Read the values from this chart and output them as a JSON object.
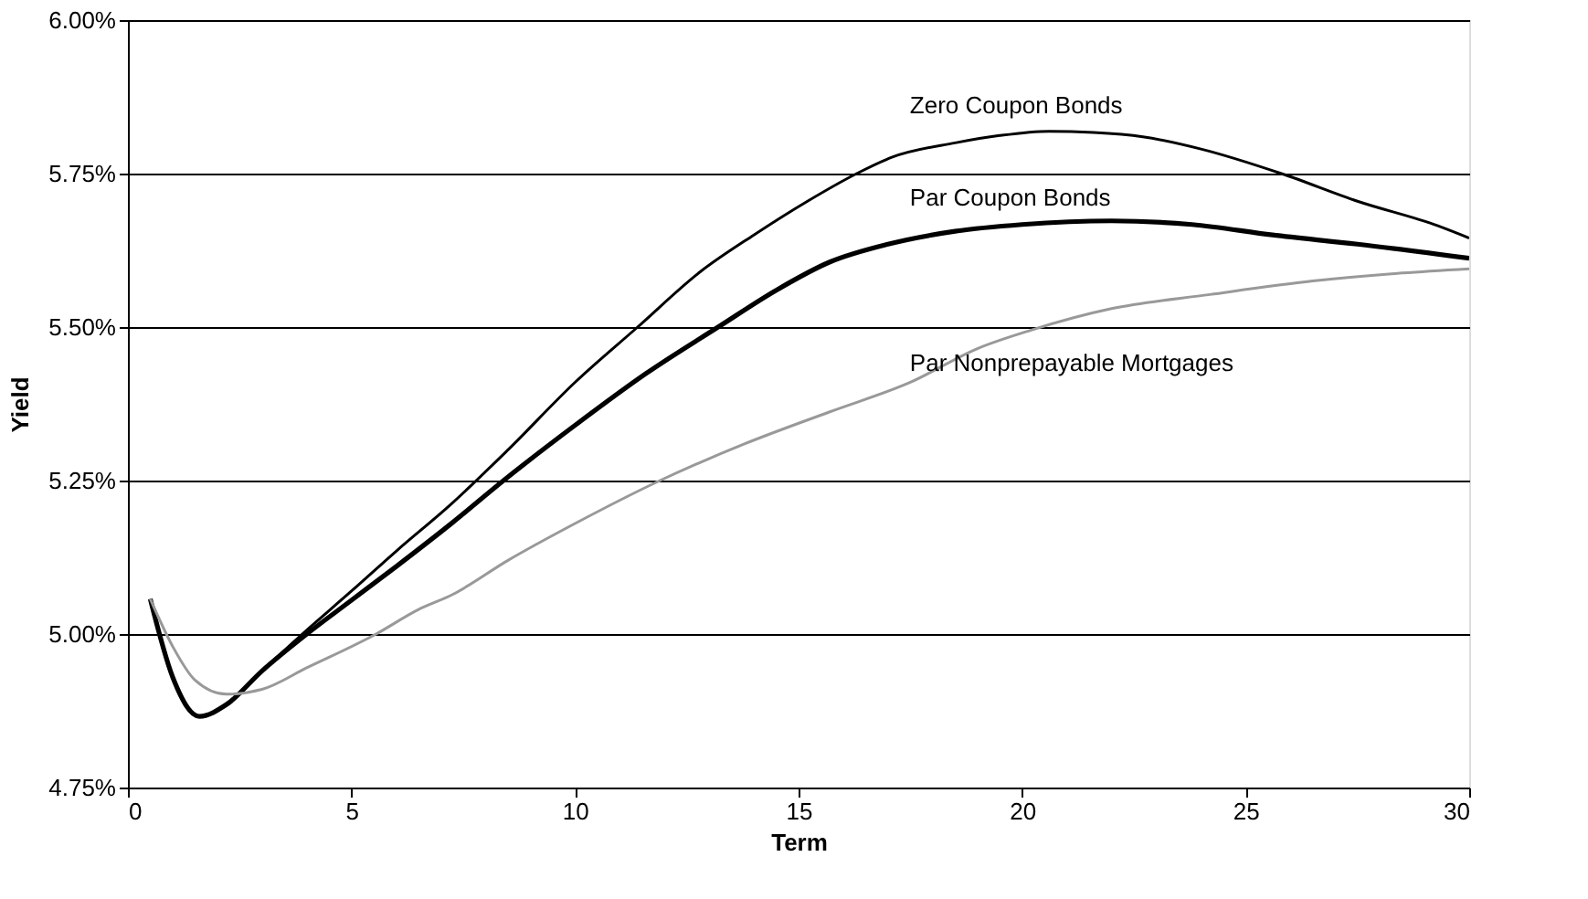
{
  "chart_data": {
    "type": "line",
    "xlabel": "Term",
    "ylabel": "Yield",
    "xlim": [
      0,
      30
    ],
    "xticks": [
      0,
      5,
      10,
      15,
      20,
      25,
      30
    ],
    "ylim": [
      4.75,
      6.0
    ],
    "yticks": [
      {
        "value": 4.75,
        "label": "4.75%"
      },
      {
        "value": 5.0,
        "label": "5.00%"
      },
      {
        "value": 5.25,
        "label": "5.25%"
      },
      {
        "value": 5.5,
        "label": "5.50%"
      },
      {
        "value": 5.75,
        "label": "5.75%"
      },
      {
        "value": 6.0,
        "label": "6.00%"
      }
    ],
    "grid": "y",
    "legend": false,
    "marker": "none",
    "line_style": "solid",
    "series": [
      {
        "name": "Zero Coupon Bonds",
        "color": "#000000",
        "x": [
          0.5,
          1.0,
          1.6,
          2.2,
          3.0,
          3.9,
          5.0,
          6.0,
          7.25,
          8.5,
          10.0,
          11.4,
          12.8,
          14.0,
          15.2,
          16.3,
          17.1,
          18.5,
          19.5,
          20.6,
          21.6,
          22.7,
          24.0,
          25.8,
          27.5,
          29.3,
          30.0
        ],
        "values": [
          5.057,
          4.93,
          4.866,
          4.885,
          4.94,
          5.0,
          5.07,
          5.135,
          5.213,
          5.3,
          5.41,
          5.5,
          5.59,
          5.65,
          5.705,
          5.75,
          5.777,
          5.8,
          5.812,
          5.819,
          5.817,
          5.81,
          5.79,
          5.75,
          5.705,
          5.665,
          5.645
        ]
      },
      {
        "name": "Par Coupon Bonds",
        "color": "#000000",
        "x": [
          0.5,
          1.0,
          1.6,
          2.2,
          3.0,
          4.0,
          5.0,
          6.0,
          7.25,
          8.4,
          10.0,
          11.6,
          13.2,
          14.5,
          15.7,
          17.0,
          18.5,
          20.0,
          22.0,
          23.8,
          25.6,
          27.5,
          30.0
        ],
        "values": [
          5.057,
          4.93,
          4.866,
          4.885,
          4.94,
          5.0,
          5.055,
          5.11,
          5.181,
          5.25,
          5.34,
          5.425,
          5.5,
          5.56,
          5.606,
          5.635,
          5.656,
          5.667,
          5.673,
          5.667,
          5.65,
          5.635,
          5.612
        ]
      },
      {
        "name": "Par Nonprepayable Mortgages",
        "color": "#999999",
        "x": [
          0.5,
          1.0,
          1.5,
          2.2,
          3.0,
          4.0,
          5.55,
          6.5,
          7.25,
          8.5,
          10.0,
          11.9,
          13.8,
          15.7,
          17.5,
          19.0,
          20.2,
          22.0,
          24.2,
          26.5,
          28.5,
          30.0
        ],
        "values": [
          5.057,
          4.98,
          4.925,
          4.902,
          4.91,
          4.945,
          5.0,
          5.04,
          5.064,
          5.12,
          5.18,
          5.25,
          5.31,
          5.362,
          5.41,
          5.465,
          5.495,
          5.53,
          5.553,
          5.575,
          5.588,
          5.595
        ]
      }
    ]
  }
}
